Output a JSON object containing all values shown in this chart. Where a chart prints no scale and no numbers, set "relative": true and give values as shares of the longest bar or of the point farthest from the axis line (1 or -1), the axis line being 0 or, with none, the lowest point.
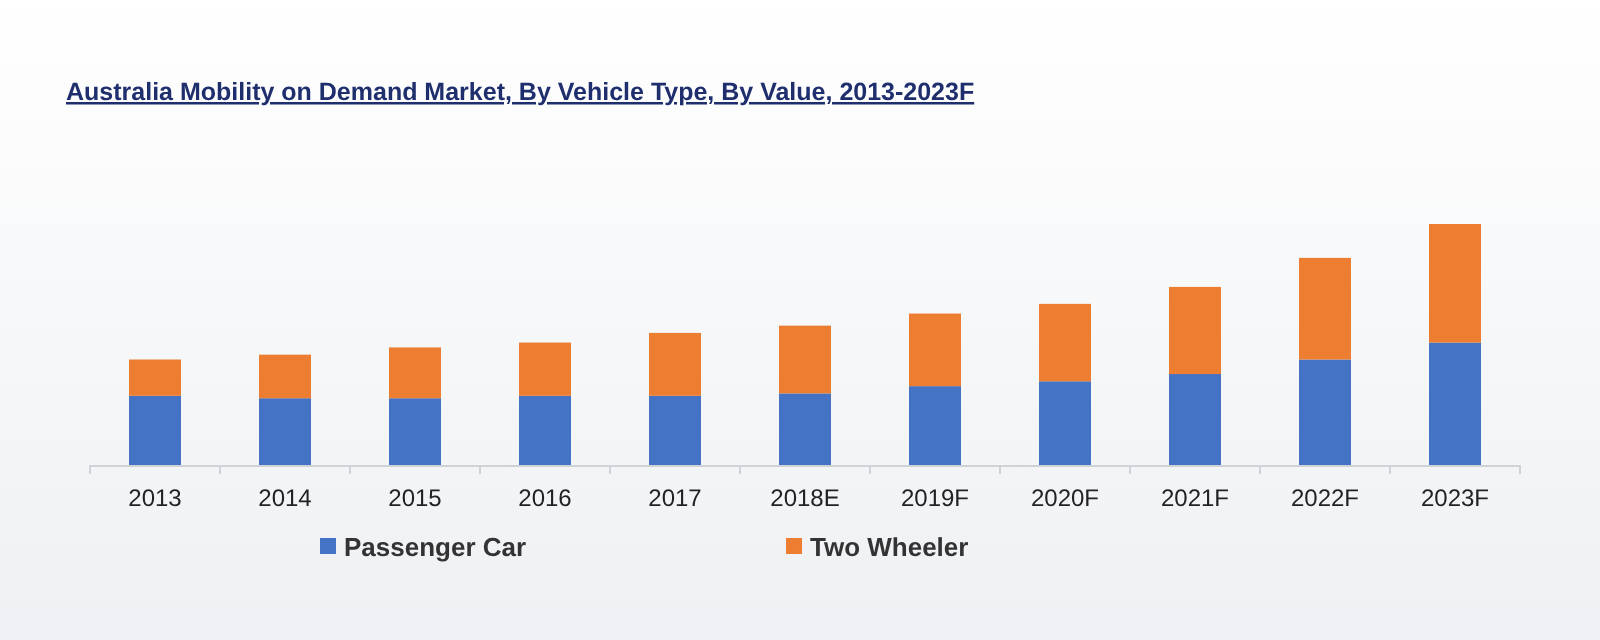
{
  "chart_data": {
    "type": "bar",
    "title": "Australia Mobility on Demand Market, By Vehicle Type, By Value, 2013-2023F",
    "categories": [
      "2013",
      "2014",
      "2015",
      "2016",
      "2017",
      "2018E",
      "2019F",
      "2020F",
      "2021F",
      "2022F",
      "2023F"
    ],
    "stacked": true,
    "relative": true,
    "legend": "bottom",
    "series": [
      {
        "name": "Passenger Car",
        "color": "#4472c4",
        "values": [
          0.29,
          0.28,
          0.28,
          0.29,
          0.29,
          0.3,
          0.33,
          0.35,
          0.38,
          0.44,
          0.51
        ]
      },
      {
        "name": "Two Wheeler",
        "color": "#ed7d31",
        "values": [
          0.15,
          0.18,
          0.21,
          0.22,
          0.26,
          0.28,
          0.3,
          0.32,
          0.36,
          0.42,
          0.49
        ]
      }
    ]
  }
}
